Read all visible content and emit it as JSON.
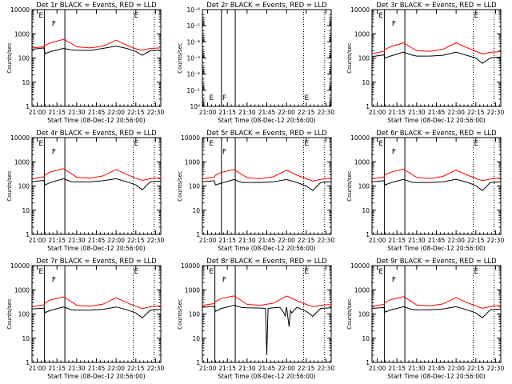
{
  "figure": {
    "colors": {
      "events": "#000000",
      "lld": "#ff0000",
      "axes": "#000000",
      "background": "#ffffff"
    },
    "common": {
      "ylabel": "Counts/sec",
      "xlabel": "Start Time (08-Dec-12 20:56:00)",
      "xtick_labels": [
        "21:00",
        "21:15",
        "21:30",
        "21:45",
        "22:00",
        "22:15",
        "22:30"
      ],
      "ytick_labels_full": [
        "1",
        "10",
        "100",
        "1000",
        "10000"
      ],
      "markers": [
        "E",
        "F",
        "E"
      ]
    }
  },
  "chart_data": [
    {
      "type": "line",
      "title": "Det 1r BLACK = Events, RED = LLD",
      "xlabel": "Start Time (08-Dec-12 20:56:00)",
      "ylabel": "Counts/sec",
      "x_unit": "minutes after 21:00",
      "xlim": [
        -4,
        94
      ],
      "ylim": [
        1,
        10000
      ],
      "yscale": "log",
      "series": [
        {
          "name": "Events",
          "color": "#000000",
          "x": [
            -4,
            5,
            6,
            10,
            20,
            26,
            30,
            40,
            50,
            60,
            68,
            75,
            80,
            86,
            94
          ],
          "y": [
            230,
            260,
            150,
            185,
            250,
            215,
            210,
            205,
            250,
            310,
            250,
            185,
            130,
            200,
            210
          ]
        },
        {
          "name": "LLD",
          "color": "#ff0000",
          "x": [
            -4,
            5,
            6,
            10,
            20,
            26,
            30,
            40,
            50,
            60,
            68,
            75,
            80,
            86,
            94
          ],
          "y": [
            260,
            290,
            330,
            420,
            590,
            400,
            290,
            260,
            310,
            540,
            340,
            240,
            210,
            250,
            260
          ]
        }
      ],
      "events": {
        "E1": 0.5,
        "F": 10.5,
        "E2": 73
      },
      "vlines_solid": [
        5.5,
        21
      ],
      "vlines_dotted": [
        73,
        89
      ]
    },
    {
      "type": "line",
      "title": "Det 2r BLACK = Events, RED = LLD",
      "xlabel": "Start Time (08-Dec-12 20:56:00)",
      "ylabel": "Counts/sec",
      "x_unit": "minutes after 21:00",
      "xlim": [
        -4,
        94
      ],
      "ylim": [
        1,
        1e-06
      ],
      "yscale": "log",
      "ytick_labels": [
        "10⁰",
        "10⁻¹",
        "10⁻²",
        "10⁻³",
        "10⁻⁴",
        "10⁻⁵",
        "10⁻⁶"
      ],
      "series": [],
      "events": {
        "E1": 0.5,
        "F": 10.5,
        "E2": 73
      },
      "vlines_solid": [
        10.5,
        21
      ],
      "vlines_dotted": [
        73,
        89
      ]
    },
    {
      "type": "line",
      "title": "Det 3r BLACK = Events, RED = LLD",
      "xlabel": "Start Time (08-Dec-12 20:56:00)",
      "ylabel": "Counts/sec",
      "x_unit": "minutes after 21:00",
      "xlim": [
        -4,
        94
      ],
      "ylim": [
        1,
        10000
      ],
      "yscale": "log",
      "series": [
        {
          "name": "Events",
          "color": "#000000",
          "x": [
            -4,
            5,
            6,
            10,
            20,
            26,
            30,
            40,
            50,
            60,
            68,
            75,
            80,
            86,
            94
          ],
          "y": [
            115,
            135,
            100,
            120,
            175,
            135,
            120,
            120,
            130,
            175,
            130,
            100,
            60,
            100,
            110
          ]
        },
        {
          "name": "LLD",
          "color": "#ff0000",
          "x": [
            -4,
            5,
            6,
            10,
            20,
            26,
            30,
            40,
            50,
            60,
            68,
            75,
            80,
            86,
            94
          ],
          "y": [
            150,
            190,
            230,
            290,
            420,
            270,
            200,
            190,
            230,
            420,
            270,
            190,
            150,
            170,
            185
          ]
        }
      ],
      "events": {
        "E1": 0.5,
        "F": 10.5,
        "E2": 73
      },
      "vlines_solid": [
        5.5,
        21
      ],
      "vlines_dotted": [
        73,
        89
      ]
    },
    {
      "type": "line",
      "title": "Det 4r BLACK = Events, RED = LLD",
      "xlabel": "Start Time (08-Dec-12 20:56:00)",
      "ylabel": "Counts/sec",
      "x_unit": "minutes after 21:00",
      "xlim": [
        -4,
        94
      ],
      "ylim": [
        1,
        10000
      ],
      "yscale": "log",
      "series": [
        {
          "name": "Events",
          "color": "#000000",
          "x": [
            -4,
            5,
            6,
            10,
            20,
            26,
            30,
            40,
            50,
            60,
            68,
            75,
            80,
            86,
            94
          ],
          "y": [
            150,
            170,
            110,
            140,
            200,
            150,
            150,
            150,
            165,
            200,
            150,
            110,
            70,
            150,
            160
          ]
        },
        {
          "name": "LLD",
          "color": "#ff0000",
          "x": [
            -4,
            5,
            6,
            10,
            20,
            26,
            30,
            40,
            50,
            60,
            68,
            75,
            80,
            86,
            94
          ],
          "y": [
            200,
            240,
            290,
            380,
            520,
            320,
            230,
            210,
            260,
            480,
            300,
            210,
            170,
            200,
            220
          ]
        }
      ],
      "events": {
        "E1": 0.5,
        "F": 10.5,
        "E2": 73
      },
      "vlines_solid": [
        5.5,
        21
      ],
      "vlines_dotted": [
        73,
        89
      ]
    },
    {
      "type": "line",
      "title": "Det 5r BLACK = Events, RED = LLD",
      "xlabel": "Start Time (08-Dec-12 20:56:00)",
      "ylabel": "Counts/sec",
      "x_unit": "minutes after 21:00",
      "xlim": [
        -4,
        94
      ],
      "ylim": [
        1,
        10000
      ],
      "yscale": "log",
      "series": [
        {
          "name": "Events",
          "color": "#000000",
          "x": [
            -4,
            5,
            6,
            10,
            20,
            26,
            30,
            40,
            50,
            60,
            68,
            75,
            80,
            86,
            94
          ],
          "y": [
            150,
            165,
            110,
            130,
            185,
            140,
            140,
            140,
            150,
            185,
            140,
            100,
            65,
            140,
            150
          ]
        },
        {
          "name": "LLD",
          "color": "#ff0000",
          "x": [
            -4,
            5,
            6,
            10,
            20,
            26,
            30,
            40,
            50,
            60,
            68,
            75,
            80,
            86,
            94
          ],
          "y": [
            200,
            230,
            280,
            360,
            480,
            300,
            220,
            200,
            240,
            450,
            280,
            200,
            160,
            190,
            210
          ]
        }
      ],
      "events": {
        "E1": 0.5,
        "F": 10.5,
        "E2": 73
      },
      "vlines_solid": [
        10.5,
        21
      ],
      "vlines_dotted": [
        73,
        89
      ]
    },
    {
      "type": "line",
      "title": "Det 6r BLACK = Events, RED = LLD",
      "xlabel": "Start Time (08-Dec-12 20:56:00)",
      "ylabel": "Counts/sec",
      "x_unit": "minutes after 21:00",
      "xlim": [
        -4,
        94
      ],
      "ylim": [
        1,
        10000
      ],
      "yscale": "log",
      "series": [
        {
          "name": "Events",
          "color": "#000000",
          "x": [
            -4,
            5,
            6,
            10,
            20,
            26,
            30,
            40,
            50,
            60,
            68,
            75,
            80,
            86,
            94
          ],
          "y": [
            150,
            165,
            110,
            135,
            190,
            145,
            140,
            140,
            150,
            190,
            145,
            105,
            65,
            140,
            150
          ]
        },
        {
          "name": "LLD",
          "color": "#ff0000",
          "x": [
            -4,
            5,
            6,
            10,
            20,
            26,
            30,
            40,
            50,
            60,
            68,
            75,
            80,
            86,
            94
          ],
          "y": [
            200,
            235,
            290,
            370,
            500,
            310,
            225,
            205,
            250,
            460,
            290,
            205,
            165,
            195,
            215
          ]
        }
      ],
      "events": {
        "E1": 0.5,
        "F": 10.5,
        "E2": 73
      },
      "vlines_solid": [
        5.5,
        21
      ],
      "vlines_dotted": [
        73,
        89
      ]
    },
    {
      "type": "line",
      "title": "Det 7r BLACK = Events, RED = LLD",
      "xlabel": "Start Time (08-Dec-12 20:56:00)",
      "ylabel": "Counts/sec",
      "x_unit": "minutes after 21:00",
      "xlim": [
        -4,
        94
      ],
      "ylim": [
        1,
        10000
      ],
      "yscale": "log",
      "series": [
        {
          "name": "Events",
          "color": "#000000",
          "x": [
            -4,
            5,
            6,
            10,
            20,
            26,
            30,
            40,
            50,
            60,
            68,
            75,
            80,
            86,
            94
          ],
          "y": [
            160,
            175,
            115,
            140,
            195,
            150,
            145,
            145,
            155,
            195,
            150,
            110,
            70,
            145,
            155
          ]
        },
        {
          "name": "LLD",
          "color": "#ff0000",
          "x": [
            -4,
            5,
            6,
            10,
            20,
            26,
            30,
            40,
            50,
            60,
            68,
            75,
            80,
            86,
            94
          ],
          "y": [
            200,
            240,
            290,
            380,
            510,
            320,
            230,
            210,
            255,
            470,
            295,
            210,
            165,
            200,
            220
          ]
        }
      ],
      "events": {
        "E1": 0.5,
        "F": 10.5,
        "E2": 73
      },
      "vlines_solid": [
        5.5,
        21
      ],
      "vlines_dotted": [
        73,
        89
      ]
    },
    {
      "type": "line",
      "title": "Det 8r BLACK = Events, RED = LLD",
      "xlabel": "Start Time (08-Dec-12 20:56:00)",
      "ylabel": "Counts/sec",
      "x_unit": "minutes after 21:00",
      "xlim": [
        -4,
        94
      ],
      "ylim": [
        1,
        10000
      ],
      "yscale": "log",
      "series": [
        {
          "name": "Events",
          "color": "#000000",
          "x": [
            -4,
            5,
            6,
            10,
            20,
            26,
            30,
            40,
            44,
            45,
            46,
            50,
            55,
            58,
            59,
            60,
            62,
            63,
            64,
            66,
            68,
            75,
            80,
            86,
            94
          ],
          "y": [
            190,
            210,
            130,
            165,
            230,
            185,
            180,
            175,
            170,
            2,
            170,
            180,
            190,
            110,
            80,
            200,
            30,
            140,
            110,
            150,
            190,
            130,
            80,
            170,
            180
          ]
        },
        {
          "name": "LLD",
          "color": "#ff0000",
          "x": [
            -4,
            5,
            6,
            10,
            20,
            26,
            30,
            40,
            50,
            60,
            68,
            75,
            80,
            86,
            94
          ],
          "y": [
            230,
            270,
            330,
            430,
            560,
            350,
            250,
            230,
            280,
            560,
            350,
            250,
            200,
            230,
            250
          ]
        }
      ],
      "events": {
        "E1": 0.5,
        "F": 10.5,
        "E2": 73
      },
      "vlines_solid": [
        5.5,
        21
      ],
      "vlines_dotted": [
        73,
        89
      ]
    },
    {
      "type": "line",
      "title": "Det 9r BLACK = Events, RED = LLD",
      "xlabel": "Start Time (08-Dec-12 20:56:00)",
      "ylabel": "Counts/sec",
      "x_unit": "minutes after 21:00",
      "xlim": [
        -4,
        94
      ],
      "ylim": [
        1,
        10000
      ],
      "yscale": "log",
      "series": [
        {
          "name": "Events",
          "color": "#000000",
          "x": [
            -4,
            5,
            6,
            10,
            20,
            26,
            30,
            40,
            50,
            60,
            68,
            75,
            80,
            86,
            94
          ],
          "y": [
            170,
            185,
            120,
            145,
            200,
            155,
            150,
            150,
            160,
            200,
            150,
            110,
            70,
            150,
            160
          ]
        },
        {
          "name": "LLD",
          "color": "#ff0000",
          "x": [
            -4,
            5,
            6,
            10,
            20,
            26,
            30,
            40,
            50,
            60,
            68,
            75,
            80,
            86,
            94
          ],
          "y": [
            210,
            250,
            300,
            390,
            520,
            330,
            235,
            215,
            260,
            480,
            300,
            215,
            170,
            205,
            225
          ]
        }
      ],
      "events": {
        "E1": 0.5,
        "F": 10.5,
        "E2": 73
      },
      "vlines_solid": [
        5.5,
        21
      ],
      "vlines_dotted": [
        73,
        89
      ]
    }
  ]
}
